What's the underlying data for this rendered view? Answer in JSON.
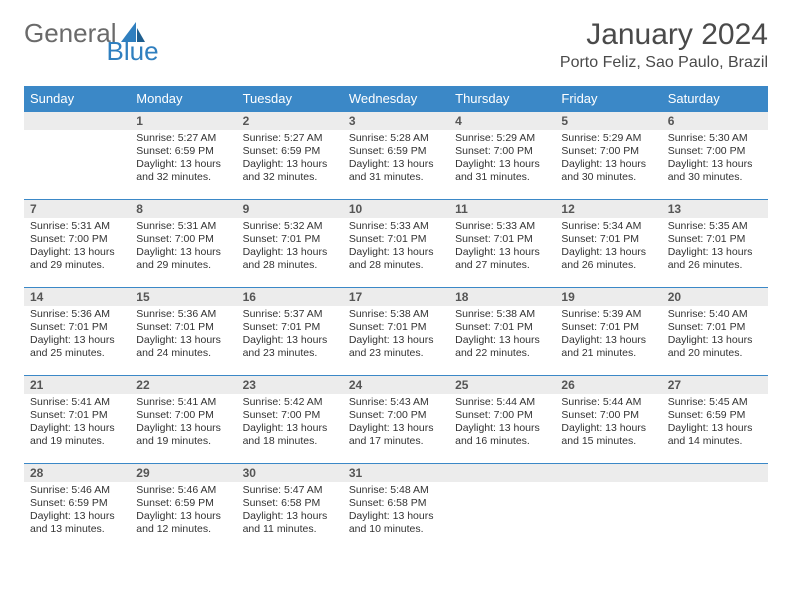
{
  "logo": {
    "text1": "General",
    "text2": "Blue"
  },
  "title": "January 2024",
  "location": "Porto Feliz, Sao Paulo, Brazil",
  "colors": {
    "header_bg": "#3b88c7",
    "header_text": "#ffffff",
    "daynum_bg": "#ececec",
    "border": "#3b88c7",
    "logo_gray": "#6a6a6a",
    "logo_blue": "#2f7fbf"
  },
  "weekdays": [
    "Sunday",
    "Monday",
    "Tuesday",
    "Wednesday",
    "Thursday",
    "Friday",
    "Saturday"
  ],
  "weeks": [
    [
      {
        "blank": true
      },
      {
        "num": "1",
        "sunrise": "Sunrise: 5:27 AM",
        "sunset": "Sunset: 6:59 PM",
        "day1": "Daylight: 13 hours",
        "day2": "and 32 minutes."
      },
      {
        "num": "2",
        "sunrise": "Sunrise: 5:27 AM",
        "sunset": "Sunset: 6:59 PM",
        "day1": "Daylight: 13 hours",
        "day2": "and 32 minutes."
      },
      {
        "num": "3",
        "sunrise": "Sunrise: 5:28 AM",
        "sunset": "Sunset: 6:59 PM",
        "day1": "Daylight: 13 hours",
        "day2": "and 31 minutes."
      },
      {
        "num": "4",
        "sunrise": "Sunrise: 5:29 AM",
        "sunset": "Sunset: 7:00 PM",
        "day1": "Daylight: 13 hours",
        "day2": "and 31 minutes."
      },
      {
        "num": "5",
        "sunrise": "Sunrise: 5:29 AM",
        "sunset": "Sunset: 7:00 PM",
        "day1": "Daylight: 13 hours",
        "day2": "and 30 minutes."
      },
      {
        "num": "6",
        "sunrise": "Sunrise: 5:30 AM",
        "sunset": "Sunset: 7:00 PM",
        "day1": "Daylight: 13 hours",
        "day2": "and 30 minutes."
      }
    ],
    [
      {
        "num": "7",
        "sunrise": "Sunrise: 5:31 AM",
        "sunset": "Sunset: 7:00 PM",
        "day1": "Daylight: 13 hours",
        "day2": "and 29 minutes."
      },
      {
        "num": "8",
        "sunrise": "Sunrise: 5:31 AM",
        "sunset": "Sunset: 7:00 PM",
        "day1": "Daylight: 13 hours",
        "day2": "and 29 minutes."
      },
      {
        "num": "9",
        "sunrise": "Sunrise: 5:32 AM",
        "sunset": "Sunset: 7:01 PM",
        "day1": "Daylight: 13 hours",
        "day2": "and 28 minutes."
      },
      {
        "num": "10",
        "sunrise": "Sunrise: 5:33 AM",
        "sunset": "Sunset: 7:01 PM",
        "day1": "Daylight: 13 hours",
        "day2": "and 28 minutes."
      },
      {
        "num": "11",
        "sunrise": "Sunrise: 5:33 AM",
        "sunset": "Sunset: 7:01 PM",
        "day1": "Daylight: 13 hours",
        "day2": "and 27 minutes."
      },
      {
        "num": "12",
        "sunrise": "Sunrise: 5:34 AM",
        "sunset": "Sunset: 7:01 PM",
        "day1": "Daylight: 13 hours",
        "day2": "and 26 minutes."
      },
      {
        "num": "13",
        "sunrise": "Sunrise: 5:35 AM",
        "sunset": "Sunset: 7:01 PM",
        "day1": "Daylight: 13 hours",
        "day2": "and 26 minutes."
      }
    ],
    [
      {
        "num": "14",
        "sunrise": "Sunrise: 5:36 AM",
        "sunset": "Sunset: 7:01 PM",
        "day1": "Daylight: 13 hours",
        "day2": "and 25 minutes."
      },
      {
        "num": "15",
        "sunrise": "Sunrise: 5:36 AM",
        "sunset": "Sunset: 7:01 PM",
        "day1": "Daylight: 13 hours",
        "day2": "and 24 minutes."
      },
      {
        "num": "16",
        "sunrise": "Sunrise: 5:37 AM",
        "sunset": "Sunset: 7:01 PM",
        "day1": "Daylight: 13 hours",
        "day2": "and 23 minutes."
      },
      {
        "num": "17",
        "sunrise": "Sunrise: 5:38 AM",
        "sunset": "Sunset: 7:01 PM",
        "day1": "Daylight: 13 hours",
        "day2": "and 23 minutes."
      },
      {
        "num": "18",
        "sunrise": "Sunrise: 5:38 AM",
        "sunset": "Sunset: 7:01 PM",
        "day1": "Daylight: 13 hours",
        "day2": "and 22 minutes."
      },
      {
        "num": "19",
        "sunrise": "Sunrise: 5:39 AM",
        "sunset": "Sunset: 7:01 PM",
        "day1": "Daylight: 13 hours",
        "day2": "and 21 minutes."
      },
      {
        "num": "20",
        "sunrise": "Sunrise: 5:40 AM",
        "sunset": "Sunset: 7:01 PM",
        "day1": "Daylight: 13 hours",
        "day2": "and 20 minutes."
      }
    ],
    [
      {
        "num": "21",
        "sunrise": "Sunrise: 5:41 AM",
        "sunset": "Sunset: 7:01 PM",
        "day1": "Daylight: 13 hours",
        "day2": "and 19 minutes."
      },
      {
        "num": "22",
        "sunrise": "Sunrise: 5:41 AM",
        "sunset": "Sunset: 7:00 PM",
        "day1": "Daylight: 13 hours",
        "day2": "and 19 minutes."
      },
      {
        "num": "23",
        "sunrise": "Sunrise: 5:42 AM",
        "sunset": "Sunset: 7:00 PM",
        "day1": "Daylight: 13 hours",
        "day2": "and 18 minutes."
      },
      {
        "num": "24",
        "sunrise": "Sunrise: 5:43 AM",
        "sunset": "Sunset: 7:00 PM",
        "day1": "Daylight: 13 hours",
        "day2": "and 17 minutes."
      },
      {
        "num": "25",
        "sunrise": "Sunrise: 5:44 AM",
        "sunset": "Sunset: 7:00 PM",
        "day1": "Daylight: 13 hours",
        "day2": "and 16 minutes."
      },
      {
        "num": "26",
        "sunrise": "Sunrise: 5:44 AM",
        "sunset": "Sunset: 7:00 PM",
        "day1": "Daylight: 13 hours",
        "day2": "and 15 minutes."
      },
      {
        "num": "27",
        "sunrise": "Sunrise: 5:45 AM",
        "sunset": "Sunset: 6:59 PM",
        "day1": "Daylight: 13 hours",
        "day2": "and 14 minutes."
      }
    ],
    [
      {
        "num": "28",
        "sunrise": "Sunrise: 5:46 AM",
        "sunset": "Sunset: 6:59 PM",
        "day1": "Daylight: 13 hours",
        "day2": "and 13 minutes."
      },
      {
        "num": "29",
        "sunrise": "Sunrise: 5:46 AM",
        "sunset": "Sunset: 6:59 PM",
        "day1": "Daylight: 13 hours",
        "day2": "and 12 minutes."
      },
      {
        "num": "30",
        "sunrise": "Sunrise: 5:47 AM",
        "sunset": "Sunset: 6:58 PM",
        "day1": "Daylight: 13 hours",
        "day2": "and 11 minutes."
      },
      {
        "num": "31",
        "sunrise": "Sunrise: 5:48 AM",
        "sunset": "Sunset: 6:58 PM",
        "day1": "Daylight: 13 hours",
        "day2": "and 10 minutes."
      },
      {
        "blank": true
      },
      {
        "blank": true
      },
      {
        "blank": true
      }
    ]
  ]
}
